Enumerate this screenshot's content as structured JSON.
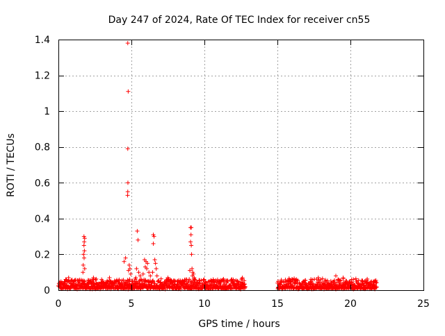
{
  "chart_data": {
    "type": "scatter",
    "title": "Day 247 of 2024, Rate Of TEC Index for receiver cn55",
    "xlabel": "GPS time / hours",
    "ylabel": "ROTI / TECUs",
    "xlim": [
      0,
      25
    ],
    "ylim": [
      0,
      1.4
    ],
    "xticks": [
      0,
      5,
      10,
      15,
      20,
      25
    ],
    "yticks": [
      0,
      0.2,
      0.4,
      0.6,
      0.8,
      1,
      1.2,
      1.4
    ],
    "xtick_labels": [
      "0",
      "5",
      "10",
      "15",
      "20",
      "25"
    ],
    "ytick_labels": [
      "0",
      "0.2",
      "0.4",
      "0.6",
      "0.8",
      "1",
      "1.2",
      "1.4"
    ],
    "grid": true,
    "marker": "+",
    "color": "#ff0000",
    "series": [
      {
        "name": "cn55",
        "baseline": [
          {
            "x_start": 0.0,
            "x_end": 12.8,
            "y_min": 0.0,
            "y_max": 0.06
          },
          {
            "x_start": 15.0,
            "x_end": 21.8,
            "y_min": 0.0,
            "y_max": 0.06
          }
        ],
        "points": [
          {
            "x": 4.75,
            "y": 1.38
          },
          {
            "x": 4.78,
            "y": 1.11
          },
          {
            "x": 4.75,
            "y": 0.79
          },
          {
            "x": 4.76,
            "y": 0.6
          },
          {
            "x": 4.75,
            "y": 0.55
          },
          {
            "x": 4.74,
            "y": 0.53
          },
          {
            "x": 1.75,
            "y": 0.3
          },
          {
            "x": 1.8,
            "y": 0.29
          },
          {
            "x": 1.77,
            "y": 0.27
          },
          {
            "x": 1.75,
            "y": 0.25
          },
          {
            "x": 1.78,
            "y": 0.22
          },
          {
            "x": 1.72,
            "y": 0.2
          },
          {
            "x": 1.76,
            "y": 0.18
          },
          {
            "x": 1.7,
            "y": 0.14
          },
          {
            "x": 1.8,
            "y": 0.12
          },
          {
            "x": 1.68,
            "y": 0.1
          },
          {
            "x": 4.6,
            "y": 0.18
          },
          {
            "x": 4.5,
            "y": 0.16
          },
          {
            "x": 4.85,
            "y": 0.14
          },
          {
            "x": 4.9,
            "y": 0.12
          },
          {
            "x": 4.8,
            "y": 0.11
          },
          {
            "x": 4.95,
            "y": 0.09
          },
          {
            "x": 5.4,
            "y": 0.33
          },
          {
            "x": 5.45,
            "y": 0.28
          },
          {
            "x": 5.35,
            "y": 0.12
          },
          {
            "x": 5.5,
            "y": 0.1
          },
          {
            "x": 5.6,
            "y": 0.08
          },
          {
            "x": 5.3,
            "y": 0.07
          },
          {
            "x": 5.9,
            "y": 0.17
          },
          {
            "x": 6.0,
            "y": 0.16
          },
          {
            "x": 6.1,
            "y": 0.15
          },
          {
            "x": 5.95,
            "y": 0.13
          },
          {
            "x": 6.05,
            "y": 0.12
          },
          {
            "x": 6.2,
            "y": 0.1
          },
          {
            "x": 5.8,
            "y": 0.09
          },
          {
            "x": 6.3,
            "y": 0.08
          },
          {
            "x": 6.5,
            "y": 0.31
          },
          {
            "x": 6.55,
            "y": 0.3
          },
          {
            "x": 6.5,
            "y": 0.26
          },
          {
            "x": 6.6,
            "y": 0.17
          },
          {
            "x": 6.65,
            "y": 0.15
          },
          {
            "x": 6.7,
            "y": 0.12
          },
          {
            "x": 6.45,
            "y": 0.1
          },
          {
            "x": 6.75,
            "y": 0.08
          },
          {
            "x": 9.05,
            "y": 0.35
          },
          {
            "x": 9.1,
            "y": 0.35
          },
          {
            "x": 9.08,
            "y": 0.31
          },
          {
            "x": 9.05,
            "y": 0.27
          },
          {
            "x": 9.1,
            "y": 0.25
          },
          {
            "x": 9.12,
            "y": 0.2
          },
          {
            "x": 9.15,
            "y": 0.12
          },
          {
            "x": 9.2,
            "y": 0.1
          },
          {
            "x": 9.25,
            "y": 0.09
          },
          {
            "x": 9.18,
            "y": 0.08
          },
          {
            "x": 9.3,
            "y": 0.07
          },
          {
            "x": 9.0,
            "y": 0.11
          },
          {
            "x": 2.4,
            "y": 0.07
          },
          {
            "x": 3.5,
            "y": 0.07
          },
          {
            "x": 7.5,
            "y": 0.07
          },
          {
            "x": 10.6,
            "y": 0.06
          },
          {
            "x": 12.6,
            "y": 0.07
          },
          {
            "x": 16.3,
            "y": 0.06
          },
          {
            "x": 17.8,
            "y": 0.07
          },
          {
            "x": 19.0,
            "y": 0.08
          },
          {
            "x": 19.5,
            "y": 0.07
          },
          {
            "x": 20.2,
            "y": 0.06
          },
          {
            "x": 0.5,
            "y": 0.06
          },
          {
            "x": 0.7,
            "y": 0.07
          }
        ]
      }
    ]
  }
}
